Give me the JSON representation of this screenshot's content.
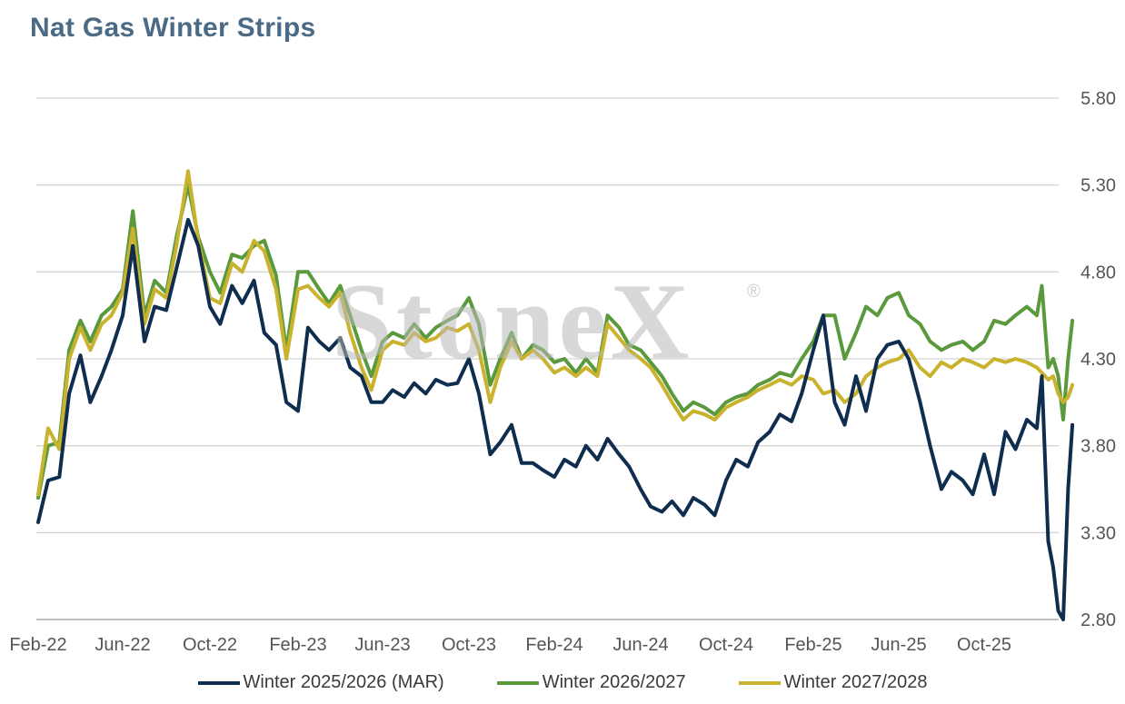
{
  "title": "Nat Gas Winter Strips",
  "watermark": "StoneX",
  "watermark_mark": "®",
  "chart_data": {
    "type": "line",
    "title": "Nat Gas Winter Strips",
    "xlabel": "",
    "ylabel": "",
    "x_ticks": [
      "Feb-22",
      "Jun-22",
      "Oct-22",
      "Feb-23",
      "Jun-23",
      "Oct-23",
      "Feb-24",
      "Jun-24",
      "Oct-24",
      "Feb-25",
      "Jun-25",
      "Oct-25"
    ],
    "y_ticks": [
      "2.80",
      "3.30",
      "3.80",
      "4.30",
      "4.80",
      "5.30",
      "5.80"
    ],
    "ylim": [
      2.8,
      5.8
    ],
    "grid": true,
    "legend_position": "bottom",
    "series": [
      {
        "name": "Winter 2025/2026 (MAR)",
        "color": "#0f2d4e",
        "x": [
          "2022-02-01",
          "2022-02-15",
          "2022-03-01",
          "2022-03-15",
          "2022-04-01",
          "2022-04-15",
          "2022-05-01",
          "2022-05-15",
          "2022-06-01",
          "2022-06-15",
          "2022-07-01",
          "2022-07-15",
          "2022-08-01",
          "2022-08-15",
          "2022-09-01",
          "2022-09-15",
          "2022-10-01",
          "2022-10-15",
          "2022-11-01",
          "2022-11-15",
          "2022-12-01",
          "2022-12-15",
          "2023-01-01",
          "2023-01-15",
          "2023-02-01",
          "2023-02-15",
          "2023-03-01",
          "2023-03-15",
          "2023-04-01",
          "2023-04-15",
          "2023-05-01",
          "2023-05-15",
          "2023-06-01",
          "2023-06-15",
          "2023-07-01",
          "2023-07-15",
          "2023-08-01",
          "2023-08-15",
          "2023-09-01",
          "2023-09-15",
          "2023-10-01",
          "2023-10-15",
          "2023-11-01",
          "2023-11-15",
          "2023-12-01",
          "2023-12-15",
          "2024-01-01",
          "2024-01-15",
          "2024-02-01",
          "2024-02-15",
          "2024-03-01",
          "2024-03-15",
          "2024-04-01",
          "2024-04-15",
          "2024-05-01",
          "2024-05-15",
          "2024-06-01",
          "2024-06-15",
          "2024-07-01",
          "2024-07-15",
          "2024-08-01",
          "2024-08-15",
          "2024-09-01",
          "2024-09-15",
          "2024-10-01",
          "2024-10-15",
          "2024-11-01",
          "2024-11-15",
          "2024-12-01",
          "2024-12-15",
          "2025-01-01",
          "2025-01-15",
          "2025-02-01",
          "2025-02-15",
          "2025-03-01",
          "2025-03-15",
          "2025-04-01",
          "2025-04-15",
          "2025-05-01",
          "2025-05-15",
          "2025-06-01",
          "2025-06-15",
          "2025-07-01",
          "2025-07-15",
          "2025-08-01",
          "2025-08-15",
          "2025-09-01",
          "2025-09-15",
          "2025-10-01",
          "2025-10-15",
          "2025-11-01",
          "2025-11-15",
          "2025-12-01",
          "2025-12-15",
          "2025-12-22",
          "2026-01-01",
          "2026-01-08",
          "2026-01-15",
          "2026-01-22",
          "2026-01-29",
          "2026-02-05"
        ],
        "values": [
          3.36,
          3.6,
          3.62,
          4.1,
          4.32,
          4.05,
          4.2,
          4.35,
          4.55,
          4.95,
          4.4,
          4.6,
          4.58,
          4.82,
          5.1,
          4.95,
          4.6,
          4.5,
          4.72,
          4.62,
          4.75,
          4.45,
          4.38,
          4.05,
          4.0,
          4.48,
          4.4,
          4.35,
          4.42,
          4.25,
          4.2,
          4.05,
          4.05,
          4.12,
          4.08,
          4.16,
          4.1,
          4.18,
          4.15,
          4.16,
          4.3,
          4.1,
          3.75,
          3.82,
          3.92,
          3.7,
          3.7,
          3.66,
          3.62,
          3.72,
          3.68,
          3.8,
          3.72,
          3.84,
          3.75,
          3.68,
          3.55,
          3.45,
          3.42,
          3.48,
          3.4,
          3.5,
          3.46,
          3.4,
          3.6,
          3.72,
          3.68,
          3.82,
          3.88,
          3.98,
          3.94,
          4.1,
          4.35,
          4.55,
          4.05,
          3.92,
          4.2,
          4.0,
          4.3,
          4.38,
          4.4,
          4.3,
          4.05,
          3.8,
          3.55,
          3.65,
          3.6,
          3.52,
          3.75,
          3.52,
          3.88,
          3.78,
          3.95,
          3.9,
          4.2,
          3.25,
          3.1,
          2.85,
          2.8,
          3.55,
          3.92
        ]
      },
      {
        "name": "Winter 2026/2027",
        "color": "#5a9a3c",
        "x": [
          "2022-02-01",
          "2022-02-15",
          "2022-03-01",
          "2022-03-15",
          "2022-04-01",
          "2022-04-15",
          "2022-05-01",
          "2022-05-15",
          "2022-06-01",
          "2022-06-15",
          "2022-07-01",
          "2022-07-15",
          "2022-08-01",
          "2022-08-15",
          "2022-09-01",
          "2022-09-15",
          "2022-10-01",
          "2022-10-15",
          "2022-11-01",
          "2022-11-15",
          "2022-12-01",
          "2022-12-15",
          "2023-01-01",
          "2023-01-15",
          "2023-02-01",
          "2023-02-15",
          "2023-03-01",
          "2023-03-15",
          "2023-04-01",
          "2023-04-15",
          "2023-05-01",
          "2023-05-15",
          "2023-06-01",
          "2023-06-15",
          "2023-07-01",
          "2023-07-15",
          "2023-08-01",
          "2023-08-15",
          "2023-09-01",
          "2023-09-15",
          "2023-10-01",
          "2023-10-15",
          "2023-11-01",
          "2023-11-15",
          "2023-12-01",
          "2023-12-15",
          "2024-01-01",
          "2024-01-15",
          "2024-02-01",
          "2024-02-15",
          "2024-03-01",
          "2024-03-15",
          "2024-04-01",
          "2024-04-15",
          "2024-05-01",
          "2024-05-15",
          "2024-06-01",
          "2024-06-15",
          "2024-07-01",
          "2024-07-15",
          "2024-08-01",
          "2024-08-15",
          "2024-09-01",
          "2024-09-15",
          "2024-10-01",
          "2024-10-15",
          "2024-11-01",
          "2024-11-15",
          "2024-12-01",
          "2024-12-15",
          "2025-01-01",
          "2025-01-15",
          "2025-02-01",
          "2025-02-15",
          "2025-03-01",
          "2025-03-15",
          "2025-04-01",
          "2025-04-15",
          "2025-05-01",
          "2025-05-15",
          "2025-06-01",
          "2025-06-15",
          "2025-07-01",
          "2025-07-15",
          "2025-08-01",
          "2025-08-15",
          "2025-09-01",
          "2025-09-15",
          "2025-10-01",
          "2025-10-15",
          "2025-11-01",
          "2025-11-15",
          "2025-12-01",
          "2025-12-15",
          "2025-12-22",
          "2026-01-01",
          "2026-01-08",
          "2026-01-15",
          "2026-01-22",
          "2026-01-29",
          "2026-02-05"
        ],
        "values": [
          3.5,
          3.8,
          3.82,
          4.35,
          4.52,
          4.4,
          4.55,
          4.6,
          4.7,
          5.15,
          4.55,
          4.75,
          4.68,
          5.0,
          5.3,
          5.0,
          4.8,
          4.68,
          4.9,
          4.88,
          4.95,
          4.98,
          4.78,
          4.35,
          4.8,
          4.8,
          4.7,
          4.62,
          4.72,
          4.55,
          4.35,
          4.2,
          4.4,
          4.45,
          4.42,
          4.5,
          4.42,
          4.48,
          4.52,
          4.55,
          4.65,
          4.5,
          4.15,
          4.3,
          4.45,
          4.3,
          4.38,
          4.35,
          4.28,
          4.3,
          4.22,
          4.3,
          4.22,
          4.55,
          4.48,
          4.38,
          4.35,
          4.28,
          4.2,
          4.1,
          4.0,
          4.05,
          4.02,
          3.98,
          4.05,
          4.08,
          4.1,
          4.15,
          4.18,
          4.22,
          4.2,
          4.3,
          4.4,
          4.55,
          4.55,
          4.3,
          4.45,
          4.6,
          4.55,
          4.65,
          4.68,
          4.55,
          4.5,
          4.4,
          4.35,
          4.38,
          4.4,
          4.35,
          4.4,
          4.52,
          4.5,
          4.55,
          4.6,
          4.55,
          4.72,
          4.25,
          4.3,
          4.2,
          3.95,
          4.3,
          4.52
        ]
      },
      {
        "name": "Winter 2027/2028",
        "color": "#c9b22e",
        "x": [
          "2022-02-01",
          "2022-02-15",
          "2022-03-01",
          "2022-03-15",
          "2022-04-01",
          "2022-04-15",
          "2022-05-01",
          "2022-05-15",
          "2022-06-01",
          "2022-06-15",
          "2022-07-01",
          "2022-07-15",
          "2022-08-01",
          "2022-08-15",
          "2022-09-01",
          "2022-09-15",
          "2022-10-01",
          "2022-10-15",
          "2022-11-01",
          "2022-11-15",
          "2022-12-01",
          "2022-12-15",
          "2023-01-01",
          "2023-01-15",
          "2023-02-01",
          "2023-02-15",
          "2023-03-01",
          "2023-03-15",
          "2023-04-01",
          "2023-04-15",
          "2023-05-01",
          "2023-05-15",
          "2023-06-01",
          "2023-06-15",
          "2023-07-01",
          "2023-07-15",
          "2023-08-01",
          "2023-08-15",
          "2023-09-01",
          "2023-09-15",
          "2023-10-01",
          "2023-10-15",
          "2023-11-01",
          "2023-11-15",
          "2023-12-01",
          "2023-12-15",
          "2024-01-01",
          "2024-01-15",
          "2024-02-01",
          "2024-02-15",
          "2024-03-01",
          "2024-03-15",
          "2024-04-01",
          "2024-04-15",
          "2024-05-01",
          "2024-05-15",
          "2024-06-01",
          "2024-06-15",
          "2024-07-01",
          "2024-07-15",
          "2024-08-01",
          "2024-08-15",
          "2024-09-01",
          "2024-09-15",
          "2024-10-01",
          "2024-10-15",
          "2024-11-01",
          "2024-11-15",
          "2024-12-01",
          "2024-12-15",
          "2025-01-01",
          "2025-01-15",
          "2025-02-01",
          "2025-02-15",
          "2025-03-01",
          "2025-03-15",
          "2025-04-01",
          "2025-04-15",
          "2025-05-01",
          "2025-05-15",
          "2025-06-01",
          "2025-06-15",
          "2025-07-01",
          "2025-07-15",
          "2025-08-01",
          "2025-08-15",
          "2025-09-01",
          "2025-09-15",
          "2025-10-01",
          "2025-10-15",
          "2025-11-01",
          "2025-11-15",
          "2025-12-01",
          "2025-12-15",
          "2025-12-22",
          "2026-01-01",
          "2026-01-08",
          "2026-01-15",
          "2026-01-22",
          "2026-01-29",
          "2026-02-05"
        ],
        "values": [
          3.52,
          3.9,
          3.78,
          4.3,
          4.48,
          4.35,
          4.5,
          4.55,
          4.68,
          5.05,
          4.5,
          4.7,
          4.65,
          4.95,
          5.38,
          4.98,
          4.65,
          4.62,
          4.85,
          4.8,
          4.98,
          4.92,
          4.7,
          4.3,
          4.7,
          4.72,
          4.65,
          4.6,
          4.68,
          4.45,
          4.25,
          4.12,
          4.35,
          4.4,
          4.38,
          4.45,
          4.4,
          4.42,
          4.48,
          4.46,
          4.5,
          4.35,
          4.05,
          4.25,
          4.4,
          4.3,
          4.35,
          4.3,
          4.22,
          4.25,
          4.2,
          4.25,
          4.2,
          4.5,
          4.42,
          4.35,
          4.3,
          4.25,
          4.15,
          4.05,
          3.95,
          4.0,
          3.98,
          3.95,
          4.02,
          4.05,
          4.08,
          4.12,
          4.15,
          4.18,
          4.15,
          4.2,
          4.18,
          4.1,
          4.12,
          4.05,
          4.1,
          4.2,
          4.25,
          4.28,
          4.3,
          4.35,
          4.25,
          4.2,
          4.28,
          4.25,
          4.3,
          4.28,
          4.25,
          4.3,
          4.28,
          4.3,
          4.28,
          4.25,
          4.22,
          4.18,
          4.2,
          4.1,
          4.05,
          4.08,
          4.15
        ]
      }
    ]
  }
}
